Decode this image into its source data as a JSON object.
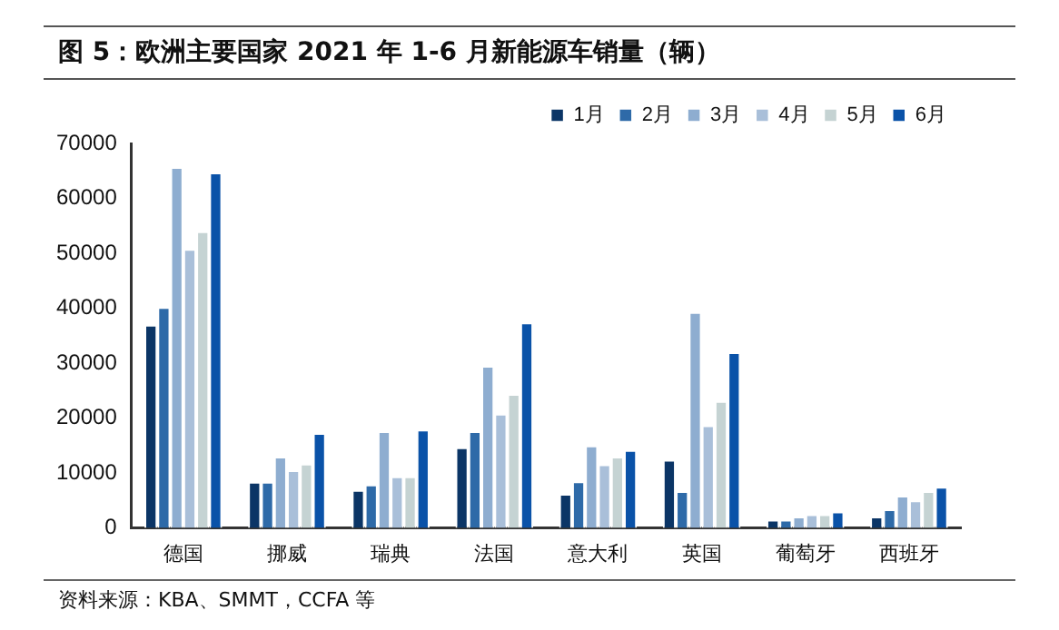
{
  "chart_data": {
    "type": "bar",
    "title": "图 5：欧洲主要国家 2021 年 1-6 月新能源车销量（辆）",
    "categories": [
      "德国",
      "挪威",
      "瑞典",
      "法国",
      "意大利",
      "英国",
      "葡萄牙",
      "西班牙"
    ],
    "series": [
      {
        "name": "1月",
        "color": "#0b3566",
        "values": [
          37000,
          8400,
          6900,
          14700,
          6200,
          12400,
          1500,
          2100
        ]
      },
      {
        "name": "2月",
        "color": "#2e6aa8",
        "values": [
          40200,
          8400,
          7900,
          17600,
          8500,
          6700,
          1500,
          3400
        ]
      },
      {
        "name": "3月",
        "color": "#8eadd0",
        "values": [
          65700,
          13000,
          17600,
          29500,
          15000,
          39300,
          2100,
          5900
        ]
      },
      {
        "name": "4月",
        "color": "#a9bfd9",
        "values": [
          50800,
          10500,
          9400,
          20800,
          11600,
          18700,
          2500,
          5000
        ]
      },
      {
        "name": "5月",
        "color": "#c5d3d3",
        "values": [
          54000,
          11700,
          9400,
          24400,
          13000,
          23100,
          2500,
          6700
        ]
      },
      {
        "name": "6月",
        "color": "#0a52a8",
        "values": [
          64700,
          17300,
          17900,
          37400,
          14200,
          32000,
          3000,
          7500
        ]
      }
    ],
    "ylim": [
      0,
      70000
    ],
    "yticks": [
      0,
      10000,
      20000,
      30000,
      40000,
      50000,
      60000,
      70000
    ],
    "grid": false,
    "legend": "top right",
    "annotations": [
      "资料来源：KBA、SMMT，CCFA 等"
    ]
  }
}
